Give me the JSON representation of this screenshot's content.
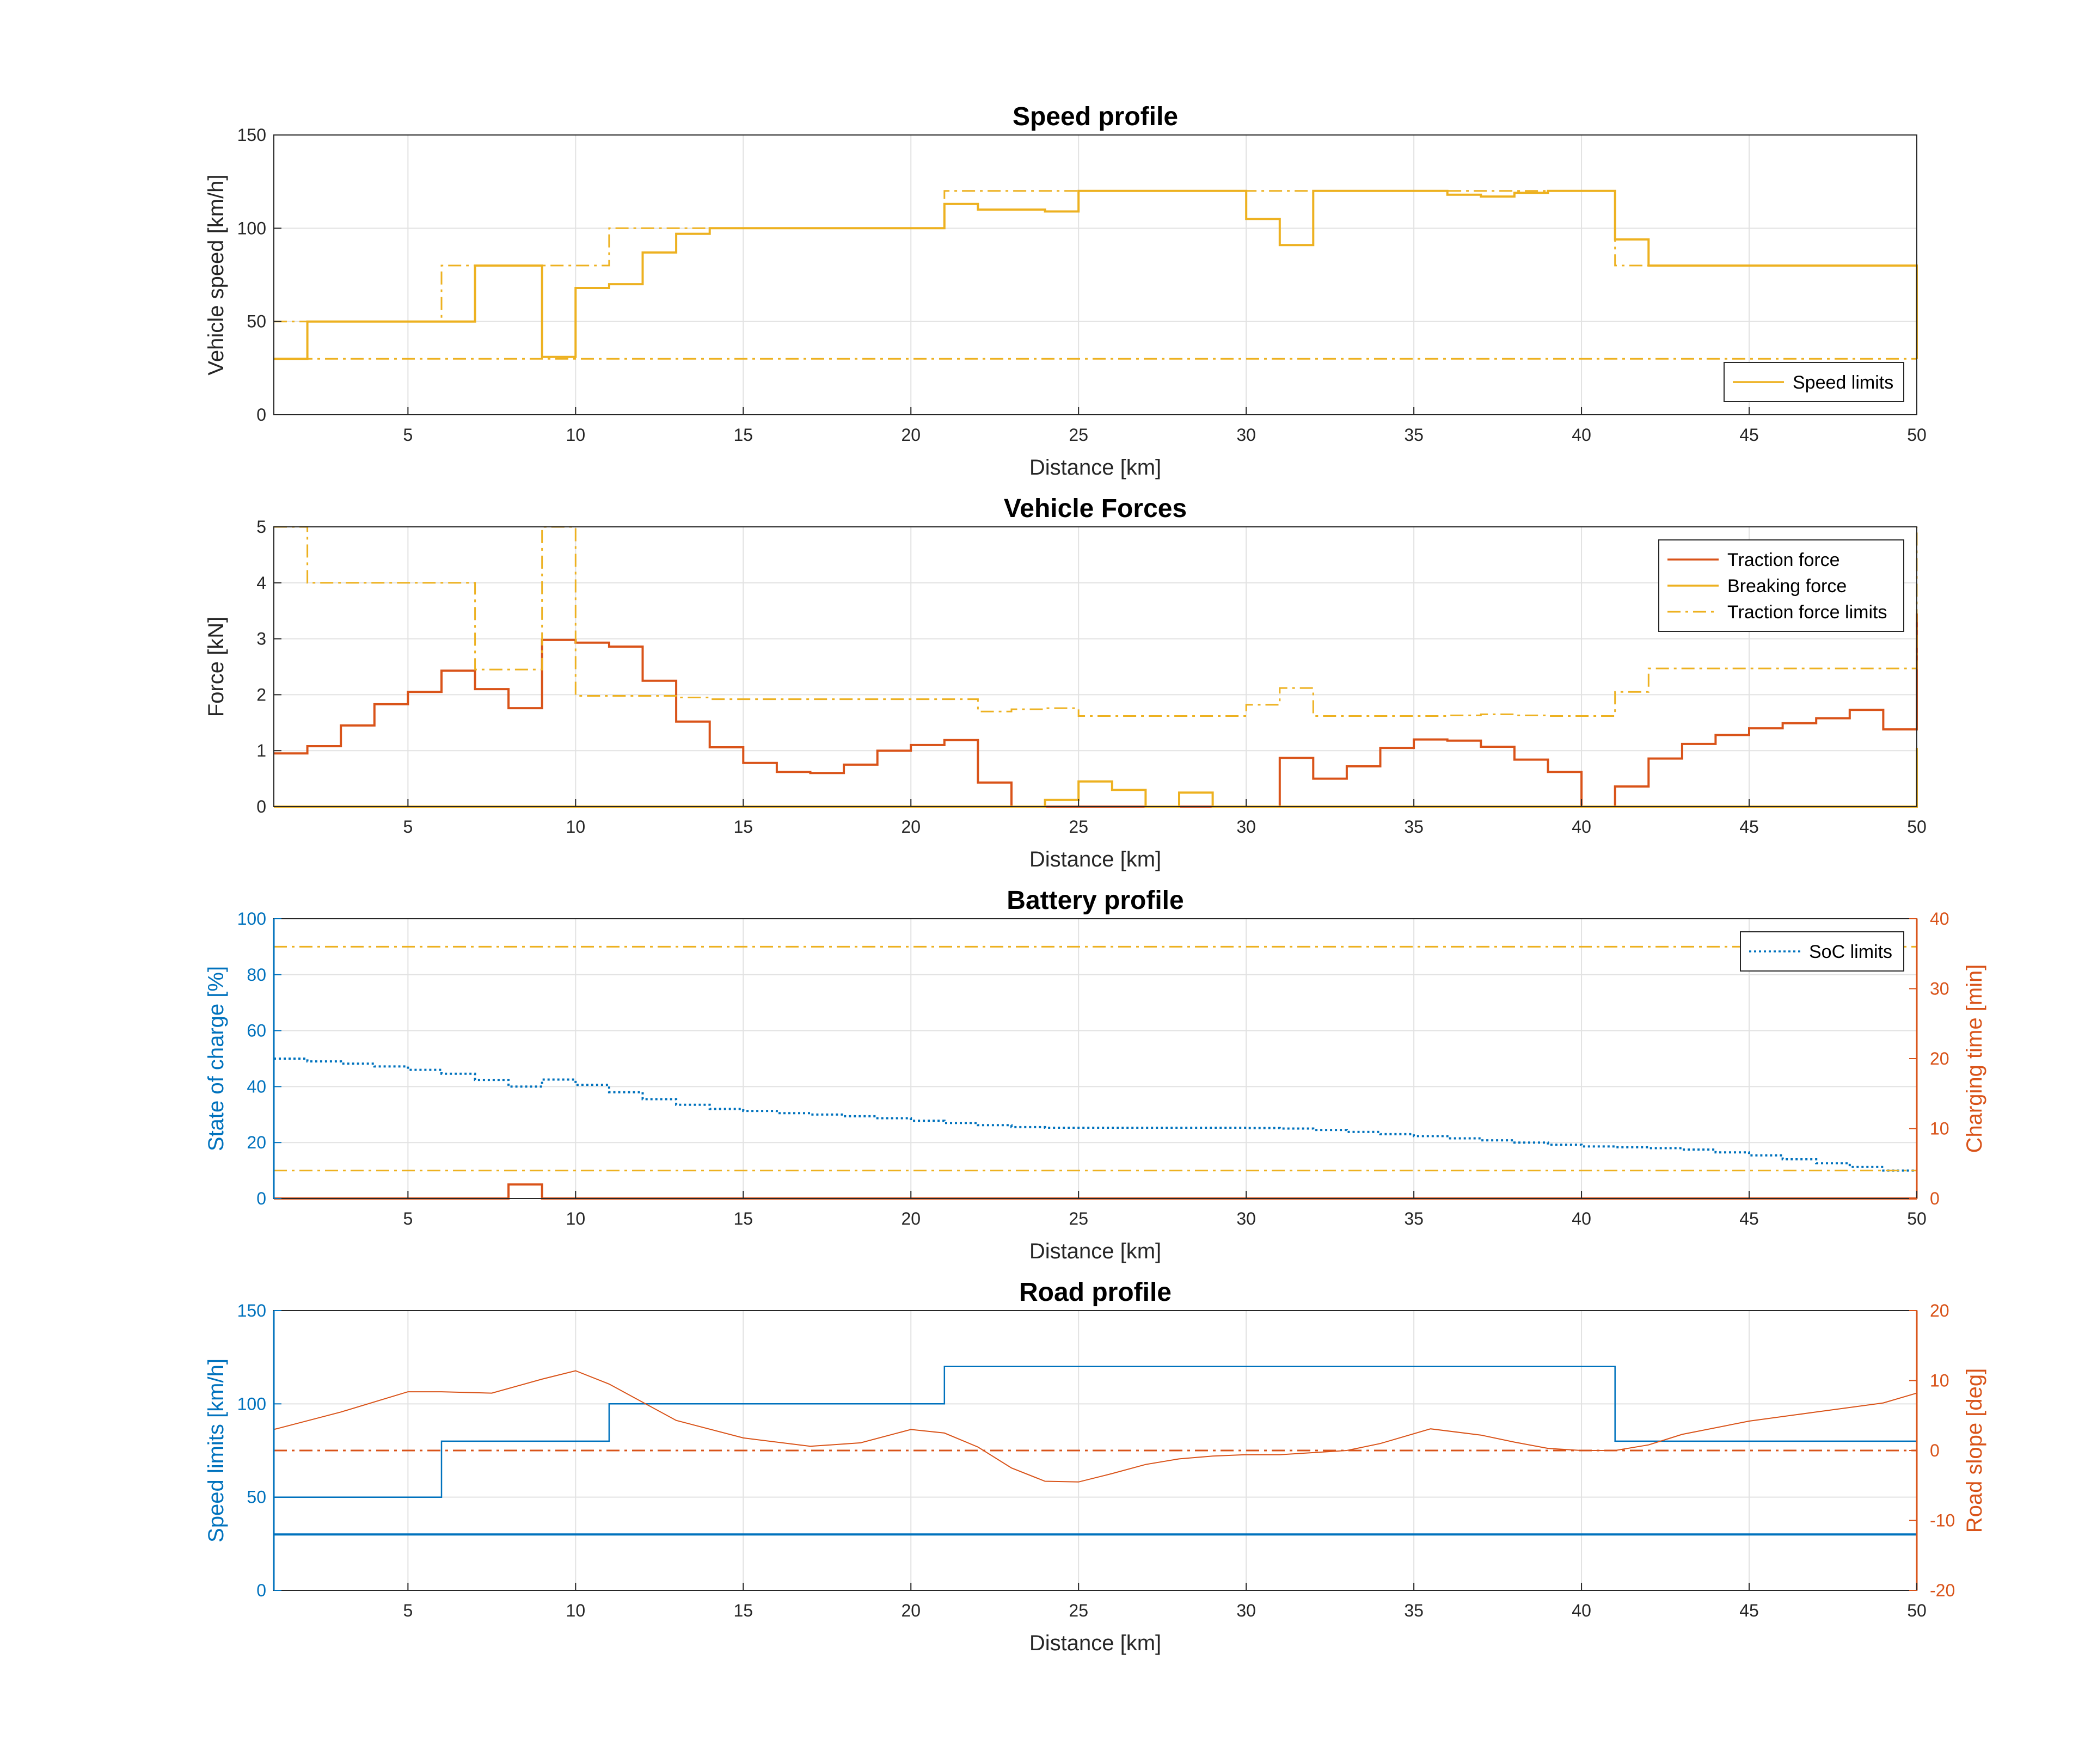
{
  "chart_data": [
    {
      "type": "line",
      "title": "Speed profile",
      "xlabel": "Distance [km]",
      "ylabel": "Vehicle speed [km/h]",
      "xlim": [
        1,
        50
      ],
      "ylim": [
        0,
        150
      ],
      "xticks": [
        5,
        10,
        15,
        20,
        25,
        30,
        35,
        40,
        45,
        50
      ],
      "yticks": [
        0,
        50,
        100,
        150
      ],
      "grid": true,
      "legend_position": "bottom-right",
      "legend": [
        "Speed limits"
      ],
      "series": [
        {
          "id": "speed",
          "color": "#EDB120",
          "style": "solid",
          "width": 4,
          "x": [
            1,
            2,
            2,
            7,
            7,
            9,
            9,
            10,
            10,
            11,
            11,
            12,
            12,
            13,
            13,
            14,
            14,
            21,
            21,
            22,
            22,
            23,
            23,
            24,
            24,
            25,
            25,
            30,
            30,
            31,
            31,
            32,
            32,
            36,
            36,
            37,
            37,
            38,
            38,
            39,
            39,
            41,
            41,
            42,
            42,
            50,
            50
          ],
          "y": [
            30,
            30,
            50,
            50,
            80,
            80,
            31,
            31,
            68,
            68,
            70,
            70,
            87,
            87,
            97,
            97,
            100,
            100,
            113,
            113,
            110,
            110,
            110,
            110,
            109,
            109,
            120,
            120,
            105,
            105,
            91,
            91,
            120,
            120,
            118,
            118,
            117,
            117,
            119,
            119,
            120,
            120,
            94,
            94,
            80,
            80,
            30
          ]
        },
        {
          "id": "limit-upper",
          "color": "#EDB120",
          "style": "dashdot",
          "width": 3,
          "x": [
            1,
            6,
            6,
            11,
            11,
            21,
            21,
            41,
            41,
            50,
            50
          ],
          "y": [
            50,
            50,
            80,
            80,
            100,
            100,
            120,
            120,
            80,
            80,
            30
          ]
        },
        {
          "id": "limit-lower",
          "color": "#EDB120",
          "style": "dashdot",
          "width": 3,
          "x": [
            1,
            50
          ],
          "y": [
            30,
            30
          ]
        }
      ]
    },
    {
      "type": "line",
      "title": "Vehicle Forces",
      "xlabel": "Distance [km]",
      "ylabel": "Force [kN]",
      "xlim": [
        1,
        50
      ],
      "ylim": [
        0,
        5
      ],
      "xticks": [
        5,
        10,
        15,
        20,
        25,
        30,
        35,
        40,
        45,
        50
      ],
      "yticks": [
        0,
        1,
        2,
        3,
        4,
        5
      ],
      "grid": true,
      "legend_position": "top-right",
      "legend": [
        "Traction force",
        "Breaking force",
        "Traction force limits"
      ],
      "series": [
        {
          "id": "traction",
          "color": "#D95319",
          "style": "solid",
          "width": 4,
          "steps": [
            0.95,
            1.08,
            1.45,
            1.83,
            2.05,
            2.43,
            2.1,
            1.76,
            2.98,
            2.93,
            2.86,
            2.25,
            1.52,
            1.06,
            0.78,
            0.62,
            0.6,
            0.75,
            1.0,
            1.1,
            1.19,
            0.43,
            0,
            0,
            0,
            0,
            0,
            0,
            0,
            0,
            0.87,
            0.5,
            0.72,
            1.05,
            1.2,
            1.18,
            1.07,
            0.84,
            0.62,
            0,
            0.36,
            0.86,
            1.12,
            1.28,
            1.4,
            1.49,
            1.58,
            1.73,
            1.38
          ],
          "end": 3.45
        },
        {
          "id": "breaking",
          "color": "#EDB120",
          "style": "solid",
          "width": 4,
          "steps": [
            0,
            0,
            0,
            0,
            0,
            0,
            0,
            0,
            0,
            0,
            0,
            0,
            0,
            0,
            0,
            0,
            0,
            0,
            0,
            0,
            0,
            0,
            0,
            0.12,
            0.45,
            0.3,
            0,
            0.25,
            0,
            0,
            0,
            0,
            0,
            0,
            0,
            0,
            0,
            0,
            0,
            0,
            0,
            0,
            0,
            0,
            0,
            0,
            0,
            0,
            0
          ],
          "end": 1.05
        },
        {
          "id": "traction-limits",
          "color": "#EDB120",
          "style": "dashdot",
          "width": 3,
          "steps": [
            5,
            4,
            4,
            4,
            4,
            4,
            2.45,
            2.45,
            5,
            1.98,
            1.98,
            1.98,
            1.95,
            1.92,
            1.92,
            1.92,
            1.92,
            1.92,
            1.92,
            1.92,
            1.92,
            1.7,
            1.74,
            1.76,
            1.62,
            1.62,
            1.62,
            1.62,
            1.62,
            1.82,
            2.12,
            1.62,
            1.62,
            1.62,
            1.62,
            1.63,
            1.65,
            1.63,
            1.62,
            1.62,
            2.05,
            2.47,
            2.47,
            2.47,
            2.47,
            2.47,
            2.47,
            2.47,
            2.47
          ],
          "end": 5
        }
      ]
    },
    {
      "type": "line",
      "title": "Battery profile",
      "xlabel": "Distance [km]",
      "ylabel": "State of charge [%]",
      "ylabel_right": "Charging time [min]",
      "xlim": [
        1,
        50
      ],
      "ylim": [
        0,
        100
      ],
      "ylim_right": [
        0,
        40
      ],
      "xticks": [
        5,
        10,
        15,
        20,
        25,
        30,
        35,
        40,
        45,
        50
      ],
      "yticks": [
        0,
        20,
        40,
        60,
        80,
        100
      ],
      "yticks_right": [
        0,
        10,
        20,
        30,
        40
      ],
      "grid": true,
      "legend_position": "top-right",
      "legend": [
        "SoC limits"
      ],
      "series": [
        {
          "id": "soc",
          "color": "#0072BD",
          "style": "dotted",
          "width": 4,
          "axis": "left",
          "steps": [
            50,
            49,
            48.2,
            47.2,
            46,
            44.6,
            42.4,
            40,
            42.5,
            40.6,
            38,
            35.5,
            33.5,
            32,
            31.3,
            30.5,
            30,
            29.4,
            28.7,
            27.8,
            27,
            26.2,
            25.5,
            25.3,
            25.3,
            25.3,
            25.3,
            25.3,
            25.3,
            25.2,
            25,
            24.5,
            23.8,
            23,
            22.3,
            21.5,
            20.8,
            20,
            19.2,
            18.6,
            18.3,
            18,
            17.5,
            16.5,
            15.4,
            14,
            12.6,
            11.3,
            10
          ],
          "end": 10
        },
        {
          "id": "soc-max",
          "color": "#EDB120",
          "style": "dashdot",
          "width": 3,
          "axis": "left",
          "x": [
            1,
            50
          ],
          "y": [
            90,
            90
          ]
        },
        {
          "id": "soc-min",
          "color": "#EDB120",
          "style": "dashdot",
          "width": 3,
          "axis": "left",
          "x": [
            1,
            50
          ],
          "y": [
            10,
            10
          ]
        },
        {
          "id": "charging-time",
          "color": "#D95319",
          "style": "solid",
          "width": 4,
          "axis": "right",
          "x": [
            1,
            8,
            8,
            9,
            9,
            50
          ],
          "y": [
            0,
            0,
            2,
            2,
            0,
            0
          ]
        }
      ]
    },
    {
      "type": "line",
      "title": "Road profile",
      "xlabel": "Distance [km]",
      "ylabel": "Speed limits [km/h]",
      "ylabel_right": "Road slope [deg]",
      "xlim": [
        1,
        50
      ],
      "ylim": [
        0,
        150
      ],
      "ylim_right": [
        -20,
        20
      ],
      "xticks": [
        5,
        10,
        15,
        20,
        25,
        30,
        35,
        40,
        45,
        50
      ],
      "yticks": [
        0,
        50,
        100,
        150
      ],
      "yticks_right": [
        -20,
        -10,
        0,
        10,
        20
      ],
      "grid": true,
      "series": [
        {
          "id": "road-limit-upper",
          "color": "#0072BD",
          "style": "solid",
          "width": 2.5,
          "axis": "left",
          "x": [
            1,
            6,
            6,
            11,
            11,
            21,
            21,
            41,
            41,
            50
          ],
          "y": [
            50,
            50,
            80,
            80,
            100,
            100,
            120,
            120,
            80,
            80
          ]
        },
        {
          "id": "road-limit-lower",
          "color": "#0072BD",
          "style": "solid",
          "width": 4,
          "axis": "left",
          "x": [
            1,
            50
          ],
          "y": [
            30,
            30
          ]
        },
        {
          "id": "road-slope",
          "color": "#D95319",
          "style": "solid",
          "width": 2,
          "axis": "right",
          "x": [
            1,
            3,
            5,
            6,
            7.5,
            9,
            10,
            11,
            13,
            15,
            17,
            18.5,
            20,
            21,
            22,
            23,
            24,
            25,
            26,
            27,
            28,
            29,
            30,
            31,
            32,
            33,
            34,
            35.5,
            37,
            38,
            39,
            40,
            41,
            42,
            43,
            45,
            47,
            49,
            50
          ],
          "y": [
            3,
            5.5,
            8.4,
            8.4,
            8.2,
            10.2,
            11.4,
            9.5,
            4.3,
            1.8,
            0.6,
            1.1,
            3,
            2.5,
            0.5,
            -2.5,
            -4.4,
            -4.5,
            -3.3,
            -2,
            -1.2,
            -0.8,
            -0.6,
            -0.6,
            -0.3,
            0,
            1,
            3.1,
            2.2,
            1.2,
            0.3,
            0,
            0,
            0.8,
            2.3,
            4.2,
            5.5,
            6.8,
            8.2
          ]
        },
        {
          "id": "zero-slope",
          "color": "#D95319",
          "style": "dashdot",
          "width": 3,
          "axis": "right",
          "x": [
            1,
            50
          ],
          "y": [
            0,
            0
          ]
        }
      ]
    }
  ]
}
